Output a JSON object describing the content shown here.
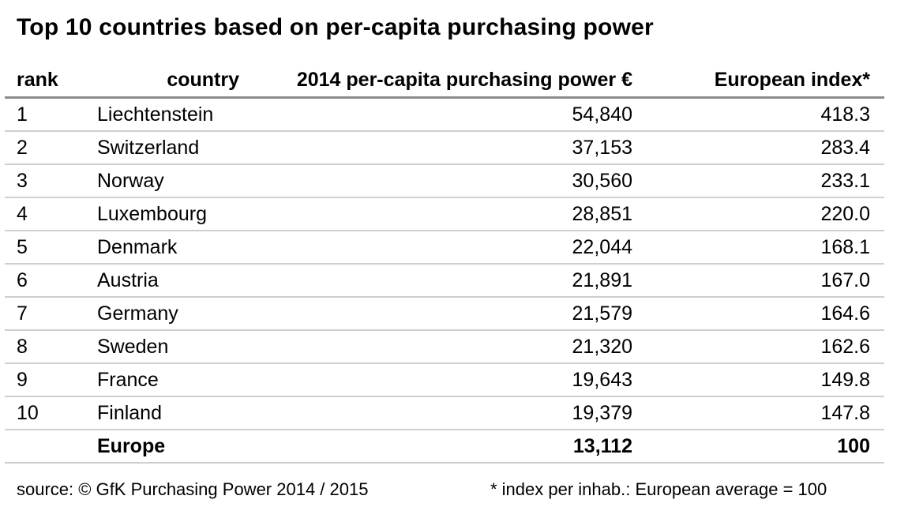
{
  "title": "Top 10 countries based on per-capita purchasing power",
  "headers": {
    "rank": "rank",
    "country": "country",
    "pp": "2014 per-capita purchasing power €",
    "index": "European index*"
  },
  "rows": [
    {
      "rank": "1",
      "country": "Liechtenstein",
      "pp": "54,840",
      "index": "418.3"
    },
    {
      "rank": "2",
      "country": "Switzerland",
      "pp": "37,153",
      "index": "283.4"
    },
    {
      "rank": "3",
      "country": "Norway",
      "pp": "30,560",
      "index": "233.1"
    },
    {
      "rank": "4",
      "country": "Luxembourg",
      "pp": "28,851",
      "index": "220.0"
    },
    {
      "rank": "5",
      "country": "Denmark",
      "pp": "22,044",
      "index": "168.1"
    },
    {
      "rank": "6",
      "country": "Austria",
      "pp": "21,891",
      "index": "167.0"
    },
    {
      "rank": "7",
      "country": "Germany",
      "pp": "21,579",
      "index": "164.6"
    },
    {
      "rank": "8",
      "country": "Sweden",
      "pp": "21,320",
      "index": "162.6"
    },
    {
      "rank": "9",
      "country": "France",
      "pp": "19,643",
      "index": "149.8"
    },
    {
      "rank": "10",
      "country": "Finland",
      "pp": "19,379",
      "index": "147.8"
    }
  ],
  "total": {
    "rank": "",
    "country": "Europe",
    "pp": "13,112",
    "index": "100"
  },
  "footer": {
    "source": "source: © GfK Purchasing Power 2014 / 2015",
    "note": "* index per inhab.: European average = 100"
  },
  "chart_data": {
    "type": "table",
    "title": "Top 10 countries based on per-capita purchasing power",
    "columns": [
      "rank",
      "country",
      "2014 per-capita purchasing power €",
      "European index*"
    ],
    "rows": [
      [
        1,
        "Liechtenstein",
        54840,
        418.3
      ],
      [
        2,
        "Switzerland",
        37153,
        283.4
      ],
      [
        3,
        "Norway",
        30560,
        233.1
      ],
      [
        4,
        "Luxembourg",
        28851,
        220.0
      ],
      [
        5,
        "Denmark",
        22044,
        168.1
      ],
      [
        6,
        "Austria",
        21891,
        167.0
      ],
      [
        7,
        "Germany",
        21579,
        164.6
      ],
      [
        8,
        "Sweden",
        21320,
        162.6
      ],
      [
        9,
        "France",
        19643,
        149.8
      ],
      [
        10,
        "Finland",
        19379,
        147.8
      ],
      [
        null,
        "Europe",
        13112,
        100
      ]
    ]
  }
}
